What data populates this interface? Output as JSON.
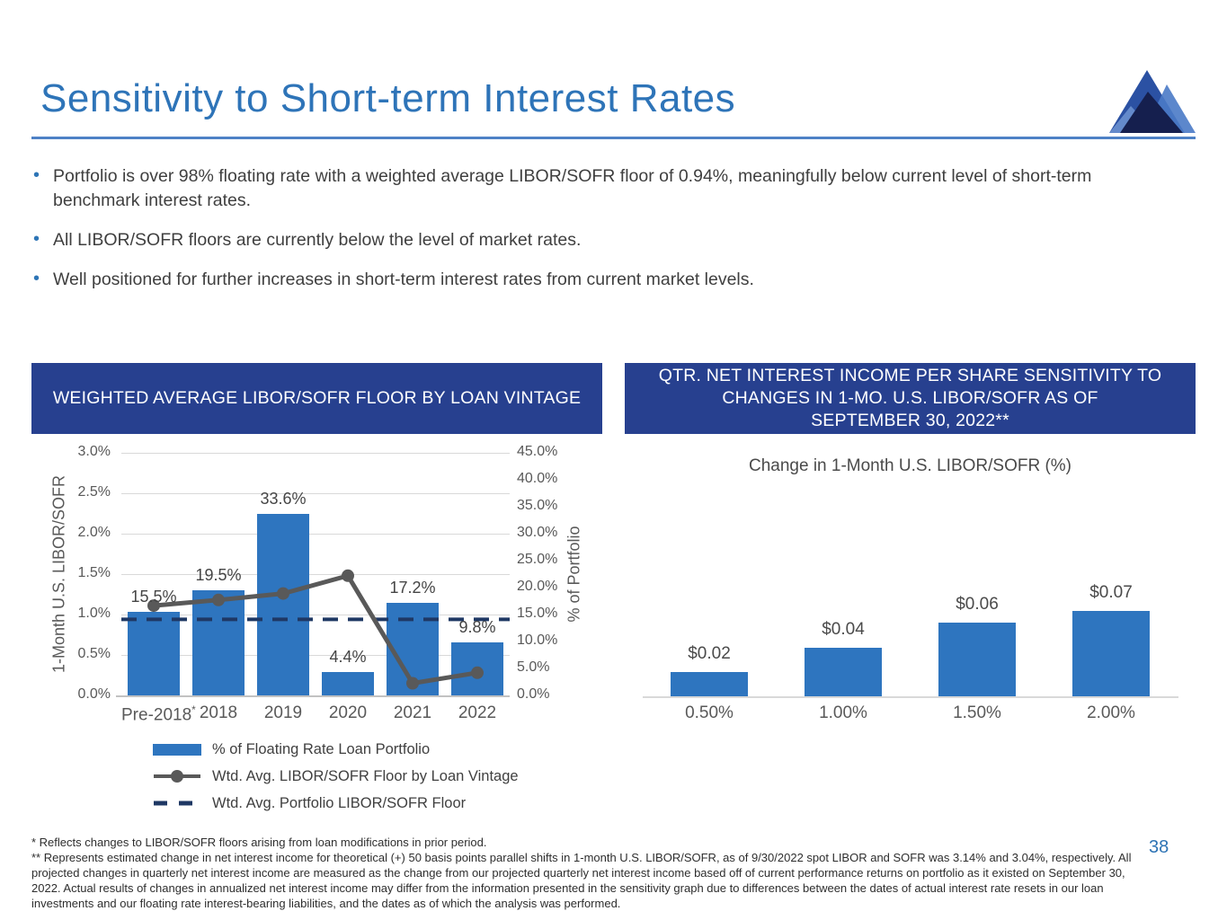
{
  "slide": {
    "title": "Sensitivity to Short-term Interest Rates",
    "logo_icon": "mountain-peaks-logo",
    "page_number": "38",
    "bullets": [
      "Portfolio is over 98% floating rate with a weighted average LIBOR/SOFR floor of 0.94%, meaningfully below current level of short-term benchmark interest rates.",
      "All LIBOR/SOFR floors are currently below the level of market rates.",
      "Well positioned for further increases in short-term interest rates from current market levels."
    ],
    "footnotes": [
      "* Reflects changes to LIBOR/SOFR floors arising from loan modifications in prior period.",
      "** Represents estimated change in net interest income for theoretical (+) 50 basis points parallel shifts in 1-month U.S. LIBOR/SOFR, as of 9/30/2022 spot LIBOR and SOFR was 3.14% and 3.04%, respectively.  All projected changes in quarterly net interest income are measured as the change from our projected quarterly net interest income based off of current performance returns on portfolio as it existed on September 30, 2022. Actual results of changes in annualized net interest income may differ from the information presented in the sensitivity graph due to differences between the dates of actual interest rate resets in our loan investments and our floating rate interest-bearing liabilities, and the dates as of which the analysis was performed."
    ],
    "colors": {
      "title_blue": "#2E74B8",
      "header_navy": "#27408F",
      "bar_blue": "#2E75BF",
      "line_gray": "#595959",
      "dashed_navy": "#1F3864",
      "rule_blue": "#4E81C6",
      "grid_gray": "#D9D9D9",
      "page_number_blue": "#2E74B5"
    }
  },
  "chart_data": [
    {
      "type": "bar",
      "title": "WEIGHTED AVERAGE LIBOR/SOFR FLOOR BY LOAN VINTAGE",
      "categories": [
        "Pre-2018",
        "2018",
        "2019",
        "2020",
        "2021",
        "2022"
      ],
      "category_suffixes": [
        "*",
        "",
        "",
        "",
        "",
        ""
      ],
      "series": [
        {
          "name": "% of Floating Rate Loan Portfolio",
          "type": "bar",
          "axis": "right",
          "values": [
            15.5,
            19.5,
            33.6,
            4.4,
            17.2,
            9.8
          ],
          "labels": [
            "15.5%",
            "19.5%",
            "33.6%",
            "4.4%",
            "17.2%",
            "9.8%"
          ],
          "color": "#2E75BF"
        },
        {
          "name": "Wtd. Avg. LIBOR/SOFR Floor by Loan Vintage",
          "type": "line",
          "axis": "left",
          "values": [
            1.11,
            1.18,
            1.26,
            1.48,
            0.15,
            0.28
          ],
          "color": "#595959"
        },
        {
          "name": "Wtd. Avg. Portfolio LIBOR/SOFR Floor",
          "type": "hline",
          "axis": "left",
          "value": 0.94,
          "dashed": true,
          "color": "#1F3864"
        }
      ],
      "left_axis": {
        "label": "1-Month U.S. LIBOR/SOFR",
        "min": 0,
        "max": 3,
        "ticks": [
          "3.0%",
          "2.5%",
          "2.0%",
          "1.5%",
          "1.0%",
          "0.5%",
          "0.0%"
        ]
      },
      "right_axis": {
        "label": "% of Portfolio",
        "min": 0,
        "max": 45,
        "ticks": [
          "45.0%",
          "40.0%",
          "35.0%",
          "30.0%",
          "25.0%",
          "20.0%",
          "15.0%",
          "10.0%",
          "5.0%",
          "0.0%"
        ]
      },
      "grid": true,
      "legend_position": "bottom-left"
    },
    {
      "type": "bar",
      "title": "QTR. NET INTEREST INCOME PER SHARE SENSITIVITY TO\nCHANGES IN 1-MO. U.S. LIBOR/SOFR AS OF\nSEPTEMBER 30, 2022**",
      "xlabel": "Change in 1-Month U.S. LIBOR/SOFR (%)",
      "categories": [
        "0.50%",
        "1.00%",
        "1.50%",
        "2.00%"
      ],
      "values": [
        0.02,
        0.04,
        0.06,
        0.07
      ],
      "labels": [
        "$0.02",
        "$0.04",
        "$0.06",
        "$0.07"
      ],
      "color": "#2E75BF",
      "grid": false
    }
  ]
}
